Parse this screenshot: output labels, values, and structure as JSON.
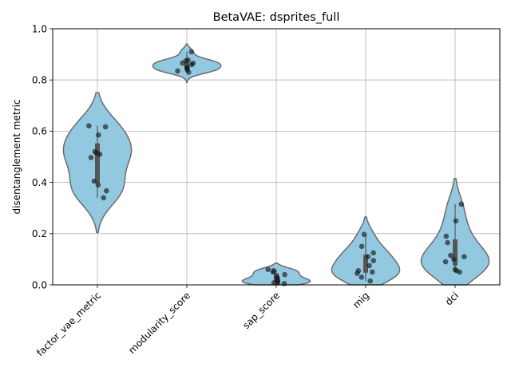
{
  "chart_data": {
    "type": "violin",
    "title": "BetaVAE: dsprites_full",
    "xlabel": "",
    "ylabel": "disentanglement metric",
    "ylim": [
      0.0,
      1.0
    ],
    "yticks": [
      "0.0",
      "0.2",
      "0.4",
      "0.6",
      "0.8",
      "1.0"
    ],
    "grid": true,
    "colors": {
      "violin": "#92c9e1",
      "outline": "#6b6b6b",
      "points": "#1a1a1a",
      "grid": "#b0b0b0",
      "box": "#555555"
    },
    "categories": [
      "factor_vae_metric",
      "modularity_score",
      "sap_score",
      "mig",
      "dci"
    ],
    "series": [
      {
        "name": "factor_vae_metric",
        "values": [
          0.617,
          0.621,
          0.585,
          0.52,
          0.515,
          0.51,
          0.497,
          0.405,
          0.39,
          0.367,
          0.34
        ],
        "violin_range": [
          0.205,
          0.75
        ]
      },
      {
        "name": "modularity_score",
        "values": [
          0.91,
          0.878,
          0.875,
          0.866,
          0.865,
          0.86,
          0.85,
          0.845,
          0.84,
          0.835,
          0.83
        ],
        "violin_range": [
          0.79,
          0.94
        ]
      },
      {
        "name": "sap_score",
        "values": [
          0.06,
          0.055,
          0.05,
          0.04,
          0.03,
          0.025,
          0.015,
          0.012,
          0.01,
          0.008,
          0.005
        ],
        "violin_range": [
          0.0,
          0.085
        ]
      },
      {
        "name": "mig",
        "values": [
          0.197,
          0.15,
          0.125,
          0.11,
          0.095,
          0.075,
          0.055,
          0.05,
          0.045,
          0.03,
          0.015
        ],
        "violin_range": [
          0.0,
          0.265
        ]
      },
      {
        "name": "dci",
        "values": [
          0.315,
          0.25,
          0.19,
          0.165,
          0.115,
          0.11,
          0.1,
          0.09,
          0.06,
          0.055,
          0.05
        ],
        "violin_range": [
          0.0,
          0.415
        ]
      }
    ]
  }
}
